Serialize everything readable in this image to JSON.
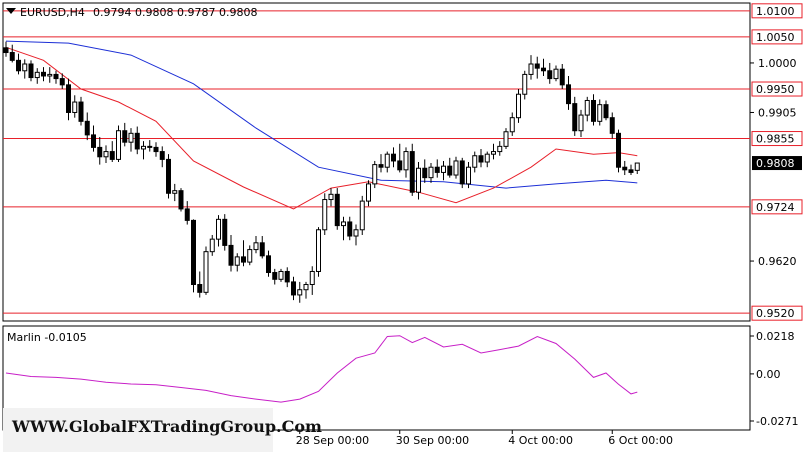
{
  "header": {
    "symbol": "EURUSD,H4",
    "ohlc": "0.9794 0.9808 0.9787 0.9808"
  },
  "indicator": {
    "label": "Marlin -0.0105",
    "ticks": [
      "0.0218",
      "0.00",
      "-0.0271"
    ]
  },
  "watermark": "WWW.GlobalFXTradingGroup.Com",
  "colors": {
    "background": "#ffffff",
    "ma_fast": "#e8202a",
    "ma_slow": "#1c2fd6",
    "level_line": "#e8202a",
    "oscillator": "#c71fc7",
    "candle": "#000000"
  },
  "chart_data": {
    "type": "candlestick",
    "timeframe": "H4",
    "price_axis_ticks": [
      "1.0000",
      "0.9905",
      "0.9620"
    ],
    "price_labels": [
      {
        "text": "1.0100",
        "value": 1.01,
        "style": "level"
      },
      {
        "text": "1.0050",
        "value": 1.005,
        "style": "level"
      },
      {
        "text": "0.9950",
        "value": 0.995,
        "style": "level"
      },
      {
        "text": "0.9855",
        "value": 0.9855,
        "style": "level"
      },
      {
        "text": "0.9808",
        "value": 0.9808,
        "style": "current"
      },
      {
        "text": "0.9724",
        "value": 0.9724,
        "style": "level"
      },
      {
        "text": "0.9520",
        "value": 0.952,
        "style": "level"
      }
    ],
    "levels": [
      1.01,
      1.005,
      0.995,
      0.9855,
      0.9724,
      0.952
    ],
    "x_labels": [
      "28 Sep 00:00",
      "30 Sep 00:00",
      "4 Oct 00:00",
      "6 Oct 00:00"
    ],
    "x_label_bar_index": [
      47,
      63,
      81,
      97
    ],
    "ylim": [
      0.9505,
      1.0115
    ],
    "candles": [
      [
        1.0029,
        1.0041,
        1.0012,
        1.002
      ],
      [
        1.002,
        1.0035,
        1.0001,
        1.0005
      ],
      [
        1.0005,
        1.0018,
        0.9978,
        0.9985
      ],
      [
        0.9985,
        1.0007,
        0.997,
        0.9998
      ],
      [
        0.9998,
        1.0005,
        0.9965,
        0.9972
      ],
      [
        0.9972,
        0.999,
        0.996,
        0.9982
      ],
      [
        0.9982,
        0.9992,
        0.9965,
        0.9975
      ],
      [
        0.9975,
        0.9992,
        0.9962,
        0.9978
      ],
      [
        0.9978,
        0.9985,
        0.996,
        0.997
      ],
      [
        0.997,
        0.998,
        0.995,
        0.9958
      ],
      [
        0.9958,
        0.997,
        0.989,
        0.9905
      ],
      [
        0.9905,
        0.9938,
        0.9895,
        0.9925
      ],
      [
        0.9925,
        0.9935,
        0.988,
        0.9888
      ],
      [
        0.9888,
        0.9905,
        0.9852,
        0.9862
      ],
      [
        0.9862,
        0.988,
        0.983,
        0.9838
      ],
      [
        0.9838,
        0.9858,
        0.9805,
        0.982
      ],
      [
        0.982,
        0.9842,
        0.9808,
        0.983
      ],
      [
        0.983,
        0.985,
        0.981,
        0.9815
      ],
      [
        0.9815,
        0.988,
        0.981,
        0.987
      ],
      [
        0.987,
        0.9885,
        0.984,
        0.9848
      ],
      [
        0.9848,
        0.9875,
        0.983,
        0.9865
      ],
      [
        0.9865,
        0.9878,
        0.9825,
        0.9835
      ],
      [
        0.9835,
        0.985,
        0.9815,
        0.984
      ],
      [
        0.984,
        0.9852,
        0.983,
        0.9838
      ],
      [
        0.9838,
        0.9848,
        0.982,
        0.983
      ],
      [
        0.983,
        0.984,
        0.98,
        0.9815
      ],
      [
        0.9815,
        0.9825,
        0.974,
        0.975
      ],
      [
        0.975,
        0.9768,
        0.9735,
        0.9755
      ],
      [
        0.9755,
        0.976,
        0.9715,
        0.972
      ],
      [
        0.972,
        0.9735,
        0.969,
        0.9698
      ],
      [
        0.9698,
        0.97,
        0.956,
        0.9575
      ],
      [
        0.9575,
        0.96,
        0.955,
        0.956
      ],
      [
        0.956,
        0.9648,
        0.9555,
        0.9638
      ],
      [
        0.9638,
        0.967,
        0.963,
        0.9662
      ],
      [
        0.9662,
        0.9708,
        0.9648,
        0.97
      ],
      [
        0.97,
        0.971,
        0.964,
        0.965
      ],
      [
        0.965,
        0.967,
        0.96,
        0.9612
      ],
      [
        0.9612,
        0.9635,
        0.96,
        0.9628
      ],
      [
        0.9628,
        0.966,
        0.961,
        0.9618
      ],
      [
        0.9618,
        0.965,
        0.9612,
        0.9642
      ],
      [
        0.9642,
        0.9668,
        0.9635,
        0.9655
      ],
      [
        0.9655,
        0.9668,
        0.9625,
        0.963
      ],
      [
        0.963,
        0.964,
        0.959,
        0.9598
      ],
      [
        0.9598,
        0.9605,
        0.9575,
        0.9585
      ],
      [
        0.9585,
        0.9605,
        0.958,
        0.96
      ],
      [
        0.96,
        0.9608,
        0.957,
        0.958
      ],
      [
        0.958,
        0.959,
        0.9545,
        0.9555
      ],
      [
        0.9555,
        0.958,
        0.954,
        0.9565
      ],
      [
        0.9565,
        0.958,
        0.9548,
        0.9575
      ],
      [
        0.9575,
        0.961,
        0.9555,
        0.96
      ],
      [
        0.96,
        0.9685,
        0.959,
        0.968
      ],
      [
        0.968,
        0.975,
        0.967,
        0.9738
      ],
      [
        0.9738,
        0.976,
        0.9725,
        0.9748
      ],
      [
        0.9748,
        0.976,
        0.968,
        0.9688
      ],
      [
        0.9688,
        0.9705,
        0.966,
        0.9695
      ],
      [
        0.9695,
        0.9705,
        0.966,
        0.9668
      ],
      [
        0.9668,
        0.969,
        0.965,
        0.968
      ],
      [
        0.968,
        0.9745,
        0.967,
        0.9735
      ],
      [
        0.9735,
        0.9775,
        0.9725,
        0.9768
      ],
      [
        0.9768,
        0.9812,
        0.976,
        0.9805
      ],
      [
        0.9805,
        0.9825,
        0.979,
        0.98
      ],
      [
        0.98,
        0.983,
        0.979,
        0.9825
      ],
      [
        0.9825,
        0.9838,
        0.98,
        0.9812
      ],
      [
        0.9812,
        0.9845,
        0.979,
        0.9795
      ],
      [
        0.9795,
        0.9838,
        0.978,
        0.983
      ],
      [
        0.983,
        0.9845,
        0.9745,
        0.9752
      ],
      [
        0.9752,
        0.981,
        0.9738,
        0.9798
      ],
      [
        0.9798,
        0.9815,
        0.977,
        0.978
      ],
      [
        0.978,
        0.9808,
        0.977,
        0.98
      ],
      [
        0.98,
        0.9815,
        0.978,
        0.979
      ],
      [
        0.979,
        0.9812,
        0.9775,
        0.9802
      ],
      [
        0.9802,
        0.9818,
        0.978,
        0.9785
      ],
      [
        0.9785,
        0.982,
        0.9778,
        0.9812
      ],
      [
        0.9812,
        0.9818,
        0.976,
        0.9768
      ],
      [
        0.9768,
        0.981,
        0.976,
        0.98
      ],
      [
        0.98,
        0.983,
        0.979,
        0.9822
      ],
      [
        0.9822,
        0.9835,
        0.98,
        0.981
      ],
      [
        0.981,
        0.983,
        0.98,
        0.9825
      ],
      [
        0.9825,
        0.9845,
        0.9815,
        0.983
      ],
      [
        0.983,
        0.985,
        0.9822,
        0.984
      ],
      [
        0.984,
        0.9875,
        0.9835,
        0.9868
      ],
      [
        0.9868,
        0.9905,
        0.986,
        0.9895
      ],
      [
        0.9895,
        0.995,
        0.9885,
        0.994
      ],
      [
        0.994,
        0.9985,
        0.993,
        0.9978
      ],
      [
        0.9978,
        1.0015,
        0.9968,
        0.9998
      ],
      [
        0.9998,
        1.0012,
        0.997,
        0.999
      ],
      [
        0.999,
        1.0008,
        0.9975,
        0.9985
      ],
      [
        0.9985,
        1.0,
        0.996,
        0.997
      ],
      [
        0.997,
        0.9995,
        0.9965,
        0.9988
      ],
      [
        0.9988,
        0.9998,
        0.995,
        0.9958
      ],
      [
        0.9958,
        0.9975,
        0.991,
        0.9922
      ],
      [
        0.9922,
        0.9935,
        0.986,
        0.987
      ],
      [
        0.987,
        0.991,
        0.9858,
        0.99
      ],
      [
        0.99,
        0.9935,
        0.9888,
        0.9928
      ],
      [
        0.9928,
        0.994,
        0.988,
        0.9888
      ],
      [
        0.9888,
        0.993,
        0.988,
        0.992
      ],
      [
        0.992,
        0.9928,
        0.989,
        0.9895
      ],
      [
        0.9895,
        0.9905,
        0.9855,
        0.9865
      ],
      [
        0.9865,
        0.9872,
        0.979,
        0.98
      ],
      [
        0.98,
        0.9812,
        0.9785,
        0.9795
      ],
      [
        0.9795,
        0.9805,
        0.9785,
        0.979
      ],
      [
        0.9794,
        0.9808,
        0.9787,
        0.9808
      ]
    ],
    "ma_fast": {
      "color": "#e8202a",
      "points": [
        [
          0,
          1.003
        ],
        [
          6,
          1.0005
        ],
        [
          12,
          0.995
        ],
        [
          18,
          0.9925
        ],
        [
          24,
          0.9888
        ],
        [
          30,
          0.9812
        ],
        [
          38,
          0.9762
        ],
        [
          46,
          0.972
        ],
        [
          52,
          0.976
        ],
        [
          58,
          0.9772
        ],
        [
          66,
          0.9752
        ],
        [
          72,
          0.9732
        ],
        [
          78,
          0.976
        ],
        [
          84,
          0.98
        ],
        [
          88,
          0.9835
        ],
        [
          94,
          0.9825
        ],
        [
          98,
          0.9828
        ],
        [
          101,
          0.9822
        ]
      ]
    },
    "ma_slow": {
      "color": "#1c2fd6",
      "points": [
        [
          0,
          1.0042
        ],
        [
          10,
          1.0038
        ],
        [
          20,
          1.0015
        ],
        [
          30,
          0.996
        ],
        [
          40,
          0.9875
        ],
        [
          50,
          0.98
        ],
        [
          60,
          0.9775
        ],
        [
          70,
          0.9772
        ],
        [
          80,
          0.976
        ],
        [
          88,
          0.9768
        ],
        [
          96,
          0.9775
        ],
        [
          101,
          0.977
        ]
      ]
    },
    "oscillator": {
      "name": "Marlin",
      "color": "#c71fc7",
      "ylim": [
        -0.0271,
        0.0218
      ],
      "points": [
        [
          0,
          0.0005
        ],
        [
          4,
          -0.0015
        ],
        [
          8,
          -0.002
        ],
        [
          12,
          -0.003
        ],
        [
          16,
          -0.0048
        ],
        [
          20,
          -0.0058
        ],
        [
          24,
          -0.0062
        ],
        [
          28,
          -0.0078
        ],
        [
          32,
          -0.0095
        ],
        [
          36,
          -0.0125
        ],
        [
          40,
          -0.0145
        ],
        [
          44,
          -0.0162
        ],
        [
          47,
          -0.0145
        ],
        [
          50,
          -0.01
        ],
        [
          53,
          0.0005
        ],
        [
          56,
          0.009
        ],
        [
          59,
          0.012
        ],
        [
          61,
          0.0215
        ],
        [
          63,
          0.022
        ],
        [
          65,
          0.018
        ],
        [
          67,
          0.021
        ],
        [
          70,
          0.0155
        ],
        [
          73,
          0.017
        ],
        [
          76,
          0.012
        ],
        [
          79,
          0.014
        ],
        [
          82,
          0.016
        ],
        [
          85,
          0.0215
        ],
        [
          88,
          0.0175
        ],
        [
          91,
          0.0085
        ],
        [
          94,
          -0.002
        ],
        [
          96,
          0.0005
        ],
        [
          98,
          -0.006
        ],
        [
          100,
          -0.0115
        ],
        [
          101,
          -0.0105
        ]
      ]
    }
  }
}
